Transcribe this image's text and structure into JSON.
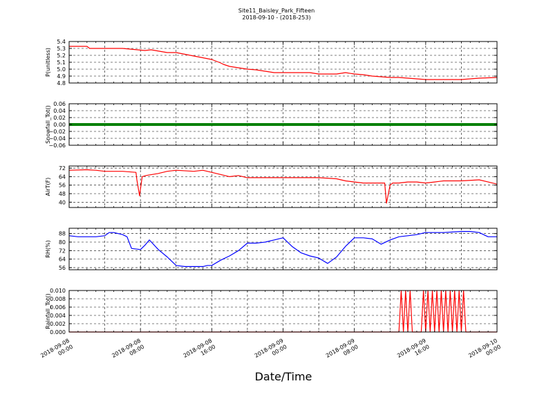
{
  "figure": {
    "title_line1": "Site11_Baisley_Park_Fifteen",
    "title_line2": "2018-09-10 - (2018-253)",
    "xlabel": "Date/Time",
    "background": "#ffffff"
  },
  "chart_data": [
    {
      "type": "line",
      "ylabel": "P(unitless)",
      "ylim": [
        4.8,
        5.4
      ],
      "yticks": [
        "5.4",
        "5.3",
        "5.2",
        "5.1",
        "5.0",
        "4.9",
        "4.8"
      ],
      "ytick_values": [
        5.4,
        5.3,
        5.2,
        5.1,
        5.0,
        4.9,
        4.8
      ],
      "grid": true,
      "series": [
        {
          "color": "#ff0000",
          "x_hours": [
            0,
            2,
            2.3,
            4,
            6,
            8.5,
            9.2,
            11,
            12,
            14,
            16,
            17,
            17.3,
            18,
            19,
            20,
            21,
            22,
            23,
            24,
            27,
            28,
            30,
            31,
            32,
            33,
            34,
            36,
            37,
            38,
            40,
            42,
            44,
            46,
            48
          ],
          "y": [
            5.33,
            5.33,
            5.3,
            5.3,
            5.3,
            5.27,
            5.28,
            5.24,
            5.24,
            5.19,
            5.14,
            5.09,
            5.07,
            5.04,
            5.02,
            5.0,
            4.99,
            4.97,
            4.95,
            4.95,
            4.95,
            4.93,
            4.93,
            4.95,
            4.93,
            4.92,
            4.9,
            4.88,
            4.88,
            4.87,
            4.85,
            4.85,
            4.85,
            4.87,
            4.88
          ]
        }
      ],
      "xticks": [
        "2018-09-08\n00:00",
        "2018-09-08\n08:00",
        "2018-09-08\n16:00",
        "2018-09-09\n00:00",
        "2018-09-09\n08:00",
        "2018-09-09\n16:00",
        "2018-09-10\n00:00"
      ]
    },
    {
      "type": "line",
      "ylabel": "Snowfall_Tot()",
      "ylim": [
        -0.06,
        0.06
      ],
      "yticks": [
        "0.06",
        "0.04",
        "0.02",
        "0.00",
        "−0.02",
        "−0.04",
        "−0.06"
      ],
      "ytick_values": [
        0.06,
        0.04,
        0.02,
        0.0,
        -0.02,
        -0.04,
        -0.06
      ],
      "grid": true,
      "series": [
        {
          "color": "#008000",
          "x_hours": [
            0,
            48
          ],
          "y": [
            0.0,
            0.0
          ]
        }
      ],
      "xticks": []
    },
    {
      "type": "line",
      "ylabel": "AirT(F)",
      "ylim": [
        35,
        74
      ],
      "yticks": [
        "72",
        "64",
        "56",
        "48",
        "40"
      ],
      "ytick_values": [
        72,
        64,
        56,
        48,
        40
      ],
      "grid": true,
      "series": [
        {
          "color": "#ff0000",
          "x_hours": [
            0,
            2,
            3,
            4,
            6,
            7.5,
            7.6,
            7.9,
            8.2,
            8.6,
            10,
            11,
            12,
            14,
            15,
            16,
            17,
            18,
            19,
            19.5,
            20,
            22,
            24,
            26,
            28,
            30,
            31,
            32,
            33,
            34,
            35.4,
            35.6,
            36.0,
            36.3,
            37,
            38,
            39,
            40,
            41,
            42,
            43,
            44,
            46,
            47,
            48
          ],
          "y": [
            70,
            70.5,
            70,
            69,
            69,
            68,
            61,
            46,
            64,
            65,
            67,
            69,
            70,
            69,
            70,
            68,
            66,
            64,
            65,
            64,
            63,
            63,
            63,
            63,
            63,
            62,
            60,
            59,
            58,
            58,
            58,
            39,
            56,
            58,
            58,
            59,
            59,
            58,
            59,
            60,
            60,
            60,
            61,
            59,
            57
          ]
        }
      ],
      "xticks": []
    },
    {
      "type": "line",
      "ylabel": "RH(%)",
      "ylim": [
        54,
        93
      ],
      "yticks": [
        "88",
        "80",
        "72",
        "64",
        "56"
      ],
      "ytick_values": [
        88,
        80,
        72,
        64,
        56
      ],
      "grid": true,
      "series": [
        {
          "color": "#0000ff",
          "x_hours": [
            0,
            1,
            3,
            4,
            4.5,
            5,
            6,
            6.5,
            7,
            8,
            8.5,
            9,
            10,
            11,
            12,
            13,
            15,
            15.5,
            16,
            17,
            18,
            19,
            20,
            21,
            22,
            23,
            24,
            25,
            26,
            27,
            27.5,
            28,
            29,
            30,
            31,
            32,
            33,
            34,
            35,
            36,
            37,
            38,
            39,
            40,
            42,
            44,
            45,
            46,
            47,
            48
          ],
          "y": [
            86,
            85,
            85,
            86,
            89,
            89,
            87,
            85,
            74,
            73,
            77,
            82,
            73,
            66,
            58,
            57,
            57,
            58,
            58,
            63,
            67,
            72,
            79,
            79,
            80,
            82,
            84,
            76,
            70,
            67,
            66,
            65,
            60,
            66,
            76,
            84,
            84,
            83,
            78,
            82,
            85,
            86,
            87,
            89,
            89,
            90,
            90,
            89,
            85,
            85
          ]
        }
      ],
      "xticks": []
    },
    {
      "type": "line",
      "ylabel": "Rainfall_Tot()",
      "ylim": [
        0.0,
        0.01
      ],
      "yticks": [
        "0.010",
        "0.008",
        "0.006",
        "0.004",
        "0.002",
        "0.000"
      ],
      "ytick_values": [
        0.01,
        0.008,
        0.006,
        0.004,
        0.002,
        0.0
      ],
      "grid": true,
      "series": [
        {
          "color": "#ff0000",
          "x_hours": [
            0,
            37.0,
            37.25,
            37.5,
            37.75,
            38.0,
            38.25,
            38.5,
            39.5,
            39.75,
            40.0,
            40.25,
            40.5,
            40.75,
            41.0,
            41.25,
            41.5,
            41.75,
            42.0,
            42.25,
            42.5,
            42.75,
            43.0,
            43.25,
            43.5,
            43.75,
            44.0,
            44.25,
            44.5,
            44.75,
            45.0,
            48
          ],
          "y": [
            0,
            0,
            0.01,
            0,
            0.01,
            0,
            0.01,
            0,
            0,
            0.01,
            0,
            0.01,
            0,
            0.01,
            0,
            0.01,
            0,
            0.01,
            0,
            0.01,
            0,
            0.01,
            0,
            0.01,
            0,
            0.01,
            0,
            0.01,
            0,
            0,
            0,
            0
          ]
        }
      ],
      "xticks": [
        "2018-09-08\n00:00",
        "2018-09-08\n08:00",
        "2018-09-08\n16:00",
        "2018-09-09\n00:00",
        "2018-09-09\n08:00",
        "2018-09-09\n16:00",
        "2018-09-10\n00:00"
      ]
    }
  ]
}
